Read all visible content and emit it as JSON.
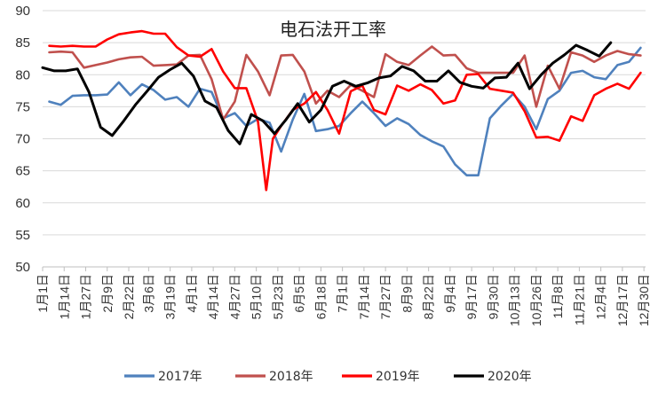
{
  "chart_data": {
    "type": "line",
    "title": "电石法开工率",
    "xlabel": "",
    "ylabel": "",
    "ylim": [
      50,
      90
    ],
    "yticks": [
      50,
      55,
      60,
      65,
      70,
      75,
      80,
      85,
      90
    ],
    "grid": true,
    "legend_position": "bottom",
    "x_range": [
      1,
      365
    ],
    "x_ticks": [
      {
        "label": "1月1日",
        "day": 1
      },
      {
        "label": "1月14日",
        "day": 14
      },
      {
        "label": "1月27日",
        "day": 27
      },
      {
        "label": "2月9日",
        "day": 40
      },
      {
        "label": "2月22日",
        "day": 53
      },
      {
        "label": "3月6日",
        "day": 65
      },
      {
        "label": "3月19日",
        "day": 78
      },
      {
        "label": "4月1日",
        "day": 91
      },
      {
        "label": "4月14日",
        "day": 104
      },
      {
        "label": "4月27日",
        "day": 117
      },
      {
        "label": "5月10日",
        "day": 130
      },
      {
        "label": "5月23日",
        "day": 143
      },
      {
        "label": "6月5日",
        "day": 156
      },
      {
        "label": "6月18日",
        "day": 169
      },
      {
        "label": "7月1日",
        "day": 182
      },
      {
        "label": "7月14日",
        "day": 195
      },
      {
        "label": "7月27日",
        "day": 208
      },
      {
        "label": "8月9日",
        "day": 221
      },
      {
        "label": "8月22日",
        "day": 234
      },
      {
        "label": "9月4日",
        "day": 247
      },
      {
        "label": "9月17日",
        "day": 260
      },
      {
        "label": "9月30日",
        "day": 273
      },
      {
        "label": "10月13日",
        "day": 286
      },
      {
        "label": "10月26日",
        "day": 299
      },
      {
        "label": "11月8日",
        "day": 312
      },
      {
        "label": "11月21日",
        "day": 325
      },
      {
        "label": "12月4日",
        "day": 338
      },
      {
        "label": "12月17日",
        "day": 351
      },
      {
        "label": "12月30日",
        "day": 364
      }
    ],
    "series": [
      {
        "name": "2017年",
        "color": "#4f81bd",
        "points": [
          [
            5,
            75.8
          ],
          [
            12,
            75.3
          ],
          [
            19,
            76.7
          ],
          [
            26,
            76.8
          ],
          [
            33,
            76.8
          ],
          [
            40,
            76.9
          ],
          [
            47,
            78.8
          ],
          [
            54,
            76.8
          ],
          [
            61,
            78.5
          ],
          [
            68,
            77.6
          ],
          [
            75,
            76.1
          ],
          [
            82,
            76.5
          ],
          [
            89,
            75.0
          ],
          [
            96,
            77.8
          ],
          [
            103,
            77.3
          ],
          [
            110,
            73.2
          ],
          [
            117,
            74.0
          ],
          [
            124,
            72.0
          ],
          [
            131,
            73.1
          ],
          [
            138,
            72.5
          ],
          [
            145,
            68.0
          ],
          [
            152,
            73.0
          ],
          [
            159,
            77.0
          ],
          [
            166,
            71.2
          ],
          [
            173,
            71.5
          ],
          [
            180,
            72.0
          ],
          [
            187,
            74.0
          ],
          [
            194,
            75.8
          ],
          [
            201,
            74.0
          ],
          [
            208,
            72.0
          ],
          [
            215,
            73.2
          ],
          [
            222,
            72.3
          ],
          [
            229,
            70.6
          ],
          [
            236,
            69.6
          ],
          [
            243,
            68.8
          ],
          [
            250,
            66.0
          ],
          [
            257,
            64.3
          ],
          [
            264,
            64.3
          ],
          [
            271,
            73.2
          ],
          [
            278,
            75.2
          ],
          [
            285,
            77.0
          ],
          [
            292,
            75.0
          ],
          [
            299,
            71.5
          ],
          [
            306,
            76.2
          ],
          [
            313,
            77.5
          ],
          [
            320,
            80.3
          ],
          [
            327,
            80.6
          ],
          [
            334,
            79.6
          ],
          [
            341,
            79.3
          ],
          [
            348,
            81.5
          ],
          [
            355,
            82.0
          ],
          [
            362,
            84.2
          ]
        ]
      },
      {
        "name": "2018年",
        "color": "#c0504d",
        "points": [
          [
            5,
            83.5
          ],
          [
            12,
            83.6
          ],
          [
            19,
            83.5
          ],
          [
            26,
            81.1
          ],
          [
            33,
            81.5
          ],
          [
            40,
            81.9
          ],
          [
            47,
            82.4
          ],
          [
            54,
            82.7
          ],
          [
            61,
            82.8
          ],
          [
            68,
            81.4
          ],
          [
            75,
            81.5
          ],
          [
            82,
            81.6
          ],
          [
            89,
            83.0
          ],
          [
            96,
            83.1
          ],
          [
            103,
            79.3
          ],
          [
            110,
            73.0
          ],
          [
            117,
            75.8
          ],
          [
            124,
            83.1
          ],
          [
            131,
            80.5
          ],
          [
            138,
            76.8
          ],
          [
            145,
            83.0
          ],
          [
            152,
            83.1
          ],
          [
            159,
            80.5
          ],
          [
            166,
            75.5
          ],
          [
            173,
            77.5
          ],
          [
            180,
            76.5
          ],
          [
            187,
            78.4
          ],
          [
            194,
            77.5
          ],
          [
            201,
            76.5
          ],
          [
            208,
            83.2
          ],
          [
            215,
            82.0
          ],
          [
            222,
            81.5
          ],
          [
            229,
            83.0
          ],
          [
            236,
            84.4
          ],
          [
            243,
            83.0
          ],
          [
            250,
            83.1
          ],
          [
            257,
            81.0
          ],
          [
            264,
            80.3
          ],
          [
            271,
            80.3
          ],
          [
            278,
            80.3
          ],
          [
            285,
            80.3
          ],
          [
            292,
            83.0
          ],
          [
            299,
            75.0
          ],
          [
            306,
            81.4
          ],
          [
            313,
            77.8
          ],
          [
            320,
            83.5
          ],
          [
            327,
            83.0
          ],
          [
            334,
            82.0
          ],
          [
            341,
            83.0
          ],
          [
            348,
            83.7
          ],
          [
            355,
            83.2
          ],
          [
            362,
            83.0
          ]
        ]
      },
      {
        "name": "2019年",
        "color": "#ff0000",
        "points": [
          [
            5,
            84.5
          ],
          [
            12,
            84.4
          ],
          [
            19,
            84.5
          ],
          [
            26,
            84.4
          ],
          [
            33,
            84.4
          ],
          [
            40,
            85.5
          ],
          [
            47,
            86.3
          ],
          [
            54,
            86.6
          ],
          [
            61,
            86.8
          ],
          [
            68,
            86.4
          ],
          [
            75,
            86.4
          ],
          [
            82,
            84.3
          ],
          [
            89,
            83.0
          ],
          [
            96,
            82.8
          ],
          [
            103,
            84.0
          ],
          [
            110,
            80.5
          ],
          [
            117,
            77.9
          ],
          [
            124,
            77.9
          ],
          [
            131,
            72.7
          ],
          [
            136,
            62.0
          ],
          [
            140,
            70.0
          ],
          [
            145,
            72.0
          ],
          [
            152,
            74.5
          ],
          [
            159,
            75.5
          ],
          [
            166,
            77.3
          ],
          [
            173,
            74.5
          ],
          [
            180,
            70.8
          ],
          [
            187,
            77.4
          ],
          [
            194,
            78.3
          ],
          [
            201,
            74.5
          ],
          [
            208,
            73.8
          ],
          [
            215,
            78.3
          ],
          [
            222,
            77.5
          ],
          [
            229,
            78.5
          ],
          [
            236,
            77.6
          ],
          [
            243,
            75.5
          ],
          [
            250,
            76.0
          ],
          [
            257,
            80.0
          ],
          [
            264,
            80.1
          ],
          [
            271,
            77.8
          ],
          [
            278,
            77.5
          ],
          [
            285,
            77.2
          ],
          [
            292,
            74.3
          ],
          [
            299,
            70.2
          ],
          [
            306,
            70.3
          ],
          [
            313,
            69.7
          ],
          [
            320,
            73.5
          ],
          [
            327,
            72.8
          ],
          [
            334,
            76.8
          ],
          [
            341,
            77.8
          ],
          [
            348,
            78.6
          ],
          [
            355,
            77.8
          ],
          [
            362,
            80.3
          ]
        ]
      },
      {
        "name": "2020年",
        "color": "#000000",
        "points": [
          [
            1,
            81.1
          ],
          [
            8,
            80.6
          ],
          [
            15,
            80.6
          ],
          [
            22,
            80.9
          ],
          [
            29,
            77.3
          ],
          [
            36,
            71.8
          ],
          [
            43,
            70.5
          ],
          [
            50,
            72.8
          ],
          [
            57,
            75.3
          ],
          [
            64,
            77.4
          ],
          [
            71,
            79.6
          ],
          [
            78,
            80.8
          ],
          [
            85,
            81.8
          ],
          [
            92,
            79.8
          ],
          [
            99,
            75.9
          ],
          [
            106,
            74.9
          ],
          [
            113,
            71.3
          ],
          [
            120,
            69.2
          ],
          [
            127,
            73.8
          ],
          [
            134,
            72.8
          ],
          [
            141,
            70.8
          ],
          [
            148,
            73.0
          ],
          [
            155,
            75.5
          ],
          [
            162,
            72.6
          ],
          [
            169,
            74.5
          ],
          [
            176,
            78.2
          ],
          [
            183,
            79.0
          ],
          [
            190,
            78.2
          ],
          [
            197,
            78.7
          ],
          [
            204,
            79.5
          ],
          [
            211,
            79.8
          ],
          [
            218,
            81.3
          ],
          [
            225,
            80.6
          ],
          [
            232,
            79.0
          ],
          [
            239,
            79.0
          ],
          [
            246,
            80.6
          ],
          [
            253,
            78.8
          ],
          [
            260,
            78.2
          ],
          [
            267,
            77.9
          ],
          [
            274,
            79.5
          ],
          [
            281,
            79.6
          ],
          [
            288,
            81.8
          ],
          [
            295,
            77.8
          ],
          [
            302,
            80.0
          ],
          [
            309,
            81.8
          ],
          [
            316,
            83.1
          ],
          [
            323,
            84.6
          ],
          [
            330,
            83.8
          ],
          [
            337,
            82.9
          ],
          [
            344,
            85.0
          ]
        ]
      }
    ]
  }
}
